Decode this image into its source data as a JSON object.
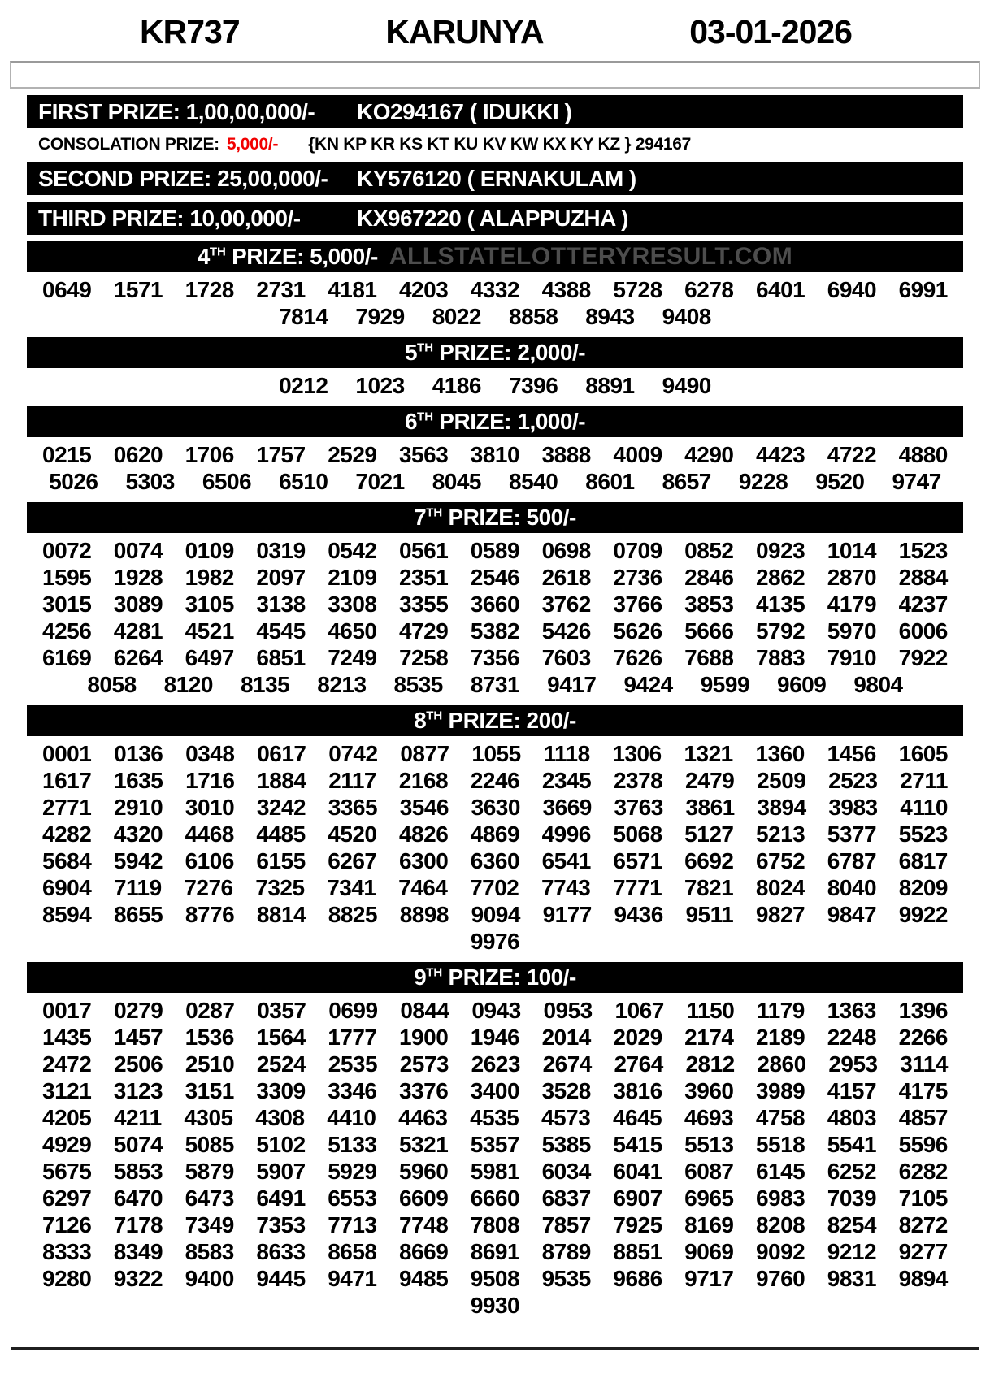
{
  "header": {
    "code": "KR737",
    "name": "KARUNYA",
    "date": "03-01-2026"
  },
  "colors": {
    "bar_background": "#000000",
    "bar_text": "#ffffff",
    "consolation_amount_red": "#f10000",
    "watermark_gray": "#4d4d4d"
  },
  "top_prizes": [
    {
      "label": "FIRST PRIZE: 1,00,00,000/-",
      "winner": "KO294167 ( IDUKKI )"
    },
    {
      "label": "SECOND PRIZE: 25,00,000/-",
      "winner": "KY576120 ( ERNAKULAM )"
    },
    {
      "label": "THIRD PRIZE: 10,00,000/-",
      "winner": "KX967220 ( ALAPPUZHA )"
    }
  ],
  "consolation": {
    "label": "CONSOLATION PRIZE:",
    "amount": "5,000/-",
    "series": "{KN KP KR KS KT KU KV KW KX KY KZ } 294167"
  },
  "sections": [
    {
      "ordinal": "4",
      "sup": "TH",
      "title": "PRIZE: 5,000/-",
      "watermark": "ALLSTATELOTTERYRESULT.COM",
      "rows": [
        [
          "0649",
          "1571",
          "1728",
          "2731",
          "4181",
          "4203",
          "4332",
          "4388",
          "5728",
          "6278",
          "6401",
          "6940",
          "6991"
        ],
        [
          "7814",
          "7929",
          "8022",
          "8858",
          "8943",
          "9408"
        ]
      ]
    },
    {
      "ordinal": "5",
      "sup": "TH",
      "title": "PRIZE: 2,000/-",
      "rows": [
        [
          "0212",
          "1023",
          "4186",
          "7396",
          "8891",
          "9490"
        ]
      ]
    },
    {
      "ordinal": "6",
      "sup": "TH",
      "title": "PRIZE: 1,000/-",
      "rows": [
        [
          "0215",
          "0620",
          "1706",
          "1757",
          "2529",
          "3563",
          "3810",
          "3888",
          "4009",
          "4290",
          "4423",
          "4722",
          "4880"
        ],
        [
          "5026",
          "5303",
          "6506",
          "6510",
          "7021",
          "8045",
          "8540",
          "8601",
          "8657",
          "9228",
          "9520",
          "9747"
        ]
      ]
    },
    {
      "ordinal": "7",
      "sup": "TH",
      "title": "PRIZE: 500/-",
      "rows": [
        [
          "0072",
          "0074",
          "0109",
          "0319",
          "0542",
          "0561",
          "0589",
          "0698",
          "0709",
          "0852",
          "0923",
          "1014",
          "1523"
        ],
        [
          "1595",
          "1928",
          "1982",
          "2097",
          "2109",
          "2351",
          "2546",
          "2618",
          "2736",
          "2846",
          "2862",
          "2870",
          "2884"
        ],
        [
          "3015",
          "3089",
          "3105",
          "3138",
          "3308",
          "3355",
          "3660",
          "3762",
          "3766",
          "3853",
          "4135",
          "4179",
          "4237"
        ],
        [
          "4256",
          "4281",
          "4521",
          "4545",
          "4650",
          "4729",
          "5382",
          "5426",
          "5626",
          "5666",
          "5792",
          "5970",
          "6006"
        ],
        [
          "6169",
          "6264",
          "6497",
          "6851",
          "7249",
          "7258",
          "7356",
          "7603",
          "7626",
          "7688",
          "7883",
          "7910",
          "7922"
        ],
        [
          "8058",
          "8120",
          "8135",
          "8213",
          "8535",
          "8731",
          "9417",
          "9424",
          "9599",
          "9609",
          "9804"
        ]
      ]
    },
    {
      "ordinal": "8",
      "sup": "TH",
      "title": "PRIZE: 200/-",
      "rows": [
        [
          "0001",
          "0136",
          "0348",
          "0617",
          "0742",
          "0877",
          "1055",
          "1118",
          "1306",
          "1321",
          "1360",
          "1456",
          "1605"
        ],
        [
          "1617",
          "1635",
          "1716",
          "1884",
          "2117",
          "2168",
          "2246",
          "2345",
          "2378",
          "2479",
          "2509",
          "2523",
          "2711"
        ],
        [
          "2771",
          "2910",
          "3010",
          "3242",
          "3365",
          "3546",
          "3630",
          "3669",
          "3763",
          "3861",
          "3894",
          "3983",
          "4110"
        ],
        [
          "4282",
          "4320",
          "4468",
          "4485",
          "4520",
          "4826",
          "4869",
          "4996",
          "5068",
          "5127",
          "5213",
          "5377",
          "5523"
        ],
        [
          "5684",
          "5942",
          "6106",
          "6155",
          "6267",
          "6300",
          "6360",
          "6541",
          "6571",
          "6692",
          "6752",
          "6787",
          "6817"
        ],
        [
          "6904",
          "7119",
          "7276",
          "7325",
          "7341",
          "7464",
          "7702",
          "7743",
          "7771",
          "7821",
          "8024",
          "8040",
          "8209"
        ],
        [
          "8594",
          "8655",
          "8776",
          "8814",
          "8825",
          "8898",
          "9094",
          "9177",
          "9436",
          "9511",
          "9827",
          "9847",
          "9922"
        ],
        [
          "9976"
        ]
      ]
    },
    {
      "ordinal": "9",
      "sup": "TH",
      "title": "PRIZE: 100/-",
      "rows": [
        [
          "0017",
          "0279",
          "0287",
          "0357",
          "0699",
          "0844",
          "0943",
          "0953",
          "1067",
          "1150",
          "1179",
          "1363",
          "1396"
        ],
        [
          "1435",
          "1457",
          "1536",
          "1564",
          "1777",
          "1900",
          "1946",
          "2014",
          "2029",
          "2174",
          "2189",
          "2248",
          "2266"
        ],
        [
          "2472",
          "2506",
          "2510",
          "2524",
          "2535",
          "2573",
          "2623",
          "2674",
          "2764",
          "2812",
          "2860",
          "2953",
          "3114"
        ],
        [
          "3121",
          "3123",
          "3151",
          "3309",
          "3346",
          "3376",
          "3400",
          "3528",
          "3816",
          "3960",
          "3989",
          "4157",
          "4175"
        ],
        [
          "4205",
          "4211",
          "4305",
          "4308",
          "4410",
          "4463",
          "4535",
          "4573",
          "4645",
          "4693",
          "4758",
          "4803",
          "4857"
        ],
        [
          "4929",
          "5074",
          "5085",
          "5102",
          "5133",
          "5321",
          "5357",
          "5385",
          "5415",
          "5513",
          "5518",
          "5541",
          "5596"
        ],
        [
          "5675",
          "5853",
          "5879",
          "5907",
          "5929",
          "5960",
          "5981",
          "6034",
          "6041",
          "6087",
          "6145",
          "6252",
          "6282"
        ],
        [
          "6297",
          "6470",
          "6473",
          "6491",
          "6553",
          "6609",
          "6660",
          "6837",
          "6907",
          "6965",
          "6983",
          "7039",
          "7105"
        ],
        [
          "7126",
          "7178",
          "7349",
          "7353",
          "7713",
          "7748",
          "7808",
          "7857",
          "7925",
          "8169",
          "8208",
          "8254",
          "8272"
        ],
        [
          "8333",
          "8349",
          "8583",
          "8633",
          "8658",
          "8669",
          "8691",
          "8789",
          "8851",
          "9069",
          "9092",
          "9212",
          "9277"
        ],
        [
          "9280",
          "9322",
          "9400",
          "9445",
          "9471",
          "9485",
          "9508",
          "9535",
          "9686",
          "9717",
          "9760",
          "9831",
          "9894"
        ],
        [
          "9930"
        ]
      ]
    }
  ]
}
